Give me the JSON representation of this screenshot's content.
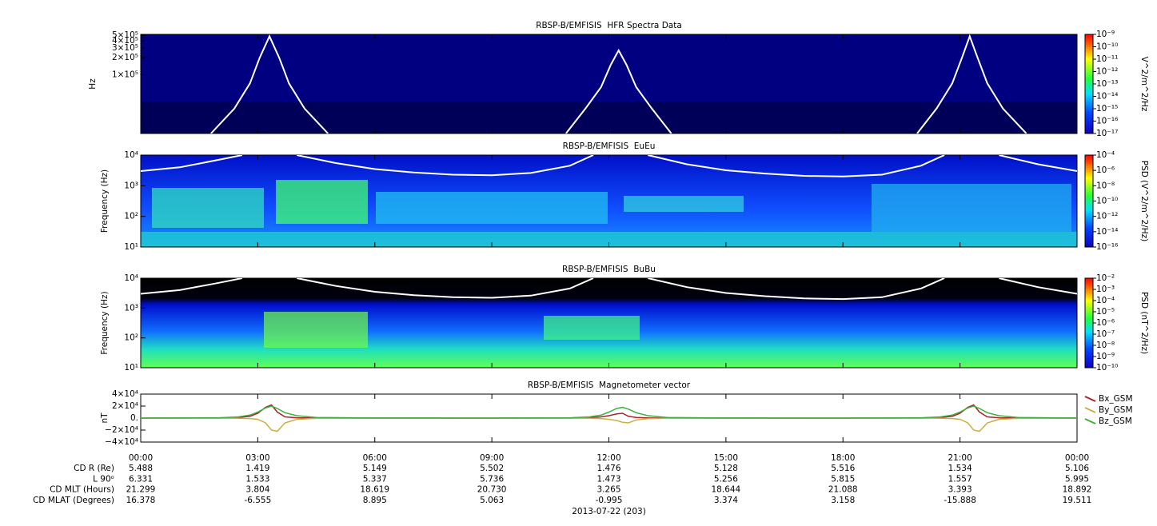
{
  "chart_data": [
    {
      "type": "spectrogram",
      "title": "RBSP-B/EMFISIS  HFR Spectra Data",
      "ylabel": "Hz",
      "log_y": true,
      "ylim": [
        9000,
        520000
      ],
      "yticks": [
        {
          "value": 100000,
          "label": "1×10⁵"
        },
        {
          "value": 200000,
          "label": "2×10⁵"
        },
        {
          "value": 300000,
          "label": "3×10⁵"
        },
        {
          "value": 400000,
          "label": "4×10⁵"
        },
        {
          "value": 500000,
          "label": "5×10⁵"
        }
      ],
      "colorbar": {
        "label": "V^2/m^2/Hz",
        "zlim": [
          1e-17,
          1e-09
        ],
        "ticks": [
          {
            "value": 1e-17,
            "label": "10⁻¹⁷"
          },
          {
            "value": 1e-16,
            "label": "10⁻¹⁶"
          },
          {
            "value": 1e-15,
            "label": "10⁻¹⁵"
          },
          {
            "value": 1e-14,
            "label": "10⁻¹⁴"
          },
          {
            "value": 1e-13,
            "label": "10⁻¹³"
          },
          {
            "value": 1e-12,
            "label": "10⁻¹²"
          },
          {
            "value": 1e-11,
            "label": "10⁻¹¹"
          },
          {
            "value": 1e-10,
            "label": "10⁻¹⁰"
          },
          {
            "value": 1e-09,
            "label": "10⁻⁹"
          }
        ]
      },
      "curve": {
        "color": "#ffffff",
        "x": [
          1.8,
          2.4,
          2.8,
          3.05,
          3.3,
          3.55,
          3.8,
          4.2,
          4.8,
          8,
          10.9,
          11.4,
          11.8,
          12.05,
          12.25,
          12.45,
          12.7,
          13.1,
          13.6,
          17,
          19.9,
          20.4,
          20.8,
          21.05,
          21.25,
          21.45,
          21.7,
          22.1,
          22.7
        ],
        "values": [
          9000,
          25000,
          70000,
          200000,
          480000,
          200000,
          70000,
          25000,
          9000,
          null,
          9000,
          25000,
          60000,
          150000,
          270000,
          150000,
          60000,
          25000,
          9000,
          null,
          9000,
          25000,
          70000,
          200000,
          480000,
          200000,
          70000,
          25000,
          9000
        ]
      }
    },
    {
      "type": "spectrogram",
      "title": "RBSP-B/EMFISIS  EuEu",
      "ylabel": "Frequency (Hz)",
      "log_y": true,
      "ylim": [
        10,
        10000
      ],
      "yticks": [
        {
          "value": 10,
          "label": "10¹"
        },
        {
          "value": 100,
          "label": "10²"
        },
        {
          "value": 1000,
          "label": "10³"
        },
        {
          "value": 10000,
          "label": "10⁴"
        }
      ],
      "colorbar": {
        "label": "PSD (V^2/m^2/Hz)",
        "zlim": [
          1e-16,
          0.0001
        ],
        "ticks": [
          {
            "value": 1e-16,
            "label": "10⁻¹⁶"
          },
          {
            "value": 1e-14,
            "label": "10⁻¹⁴"
          },
          {
            "value": 1e-12,
            "label": "10⁻¹²"
          },
          {
            "value": 1e-10,
            "label": "10⁻¹⁰"
          },
          {
            "value": 1e-08,
            "label": "10⁻⁸"
          },
          {
            "value": 1e-06,
            "label": "10⁻⁶"
          },
          {
            "value": 0.0001,
            "label": "10⁻⁴"
          }
        ]
      },
      "curve": {
        "color": "#ffffff",
        "x": [
          0,
          1,
          2,
          2.6,
          8,
          4.0,
          5,
          6,
          7,
          8,
          9,
          10,
          11,
          11.6,
          16,
          13.0,
          14,
          15,
          16,
          17,
          18,
          19,
          20,
          20.6,
          23,
          22.0,
          23,
          24
        ],
        "values": [
          3000,
          4000,
          7000,
          10000,
          null,
          10000,
          5500,
          3500,
          2700,
          2300,
          2200,
          2600,
          4500,
          10000,
          null,
          10000,
          5000,
          3200,
          2500,
          2100,
          2000,
          2300,
          4500,
          10000,
          null,
          10000,
          5000,
          3000
        ]
      }
    },
    {
      "type": "spectrogram",
      "title": "RBSP-B/EMFISIS  BuBu",
      "ylabel": "Frequency (Hz)",
      "log_y": true,
      "ylim": [
        10,
        10000
      ],
      "yticks": [
        {
          "value": 10,
          "label": "10¹"
        },
        {
          "value": 100,
          "label": "10²"
        },
        {
          "value": 1000,
          "label": "10³"
        },
        {
          "value": 10000,
          "label": "10⁴"
        }
      ],
      "colorbar": {
        "label": "PSD (nT^2/Hz)",
        "zlim": [
          1e-10,
          0.01
        ],
        "ticks": [
          {
            "value": 1e-10,
            "label": "10⁻¹⁰"
          },
          {
            "value": 1e-09,
            "label": "10⁻⁹"
          },
          {
            "value": 1e-08,
            "label": "10⁻⁸"
          },
          {
            "value": 1e-07,
            "label": "10⁻⁷"
          },
          {
            "value": 1e-06,
            "label": "10⁻⁶"
          },
          {
            "value": 1e-05,
            "label": "10⁻⁵"
          },
          {
            "value": 0.0001,
            "label": "10⁻⁴"
          },
          {
            "value": 0.001,
            "label": "10⁻³"
          },
          {
            "value": 0.01,
            "label": "10⁻²"
          }
        ]
      },
      "curve": {
        "color": "#ffffff",
        "x": [
          0,
          1,
          2,
          2.6,
          8,
          4.0,
          5,
          6,
          7,
          8,
          9,
          10,
          11,
          11.6,
          16,
          13.0,
          14,
          15,
          16,
          17,
          18,
          19,
          20,
          20.6,
          23,
          22.0,
          23,
          24
        ],
        "values": [
          3000,
          4000,
          7000,
          10000,
          null,
          10000,
          5500,
          3500,
          2700,
          2300,
          2200,
          2600,
          4500,
          10000,
          null,
          10000,
          5000,
          3200,
          2500,
          2100,
          2000,
          2300,
          4500,
          10000,
          null,
          10000,
          5000,
          3000
        ]
      }
    },
    {
      "type": "line",
      "title": "RBSP-B/EMFISIS  Magnetometer vector",
      "ylabel": "nT",
      "legend": "right",
      "xlim": [
        0,
        24
      ],
      "xticks": [
        {
          "value": 0,
          "label": "00:00"
        },
        {
          "value": 3,
          "label": "03:00"
        },
        {
          "value": 6,
          "label": "06:00"
        },
        {
          "value": 9,
          "label": "09:00"
        },
        {
          "value": 12,
          "label": "12:00"
        },
        {
          "value": 15,
          "label": "15:00"
        },
        {
          "value": 18,
          "label": "18:00"
        },
        {
          "value": 21,
          "label": "21:00"
        },
        {
          "value": 24,
          "label": "00:00"
        }
      ],
      "ylim": [
        -40000,
        40000
      ],
      "yticks": [
        {
          "value": -40000,
          "label": "−4×10⁴"
        },
        {
          "value": -20000,
          "label": "−2×10⁴"
        },
        {
          "value": 0,
          "label": "0."
        },
        {
          "value": 20000,
          "label": "2×10⁴"
        },
        {
          "value": 40000,
          "label": "4×10⁴"
        }
      ],
      "x": [
        0,
        2,
        2.5,
        2.8,
        3.0,
        3.2,
        3.35,
        3.5,
        3.7,
        4.0,
        4.5,
        6,
        9,
        11,
        11.5,
        11.8,
        12.0,
        12.2,
        12.35,
        12.5,
        12.7,
        13,
        13.5,
        15,
        18,
        20,
        20.5,
        20.8,
        21.0,
        21.2,
        21.35,
        21.5,
        21.7,
        22,
        22.5,
        24
      ],
      "series": [
        {
          "name": "Bx_GSM",
          "color": "#a8202a",
          "values": [
            0,
            200,
            1000,
            3000,
            8000,
            18000,
            22000,
            10000,
            2000,
            500,
            100,
            0,
            0,
            200,
            800,
            2000,
            4000,
            7000,
            8000,
            3000,
            1000,
            300,
            100,
            0,
            0,
            200,
            1000,
            3000,
            8000,
            18000,
            22000,
            10000,
            2000,
            500,
            100,
            0
          ]
        },
        {
          "name": "By_GSM",
          "color": "#c8b040",
          "values": [
            0,
            -100,
            -300,
            -800,
            -2000,
            -8000,
            -20000,
            -22000,
            -8000,
            -2000,
            -500,
            -100,
            0,
            -100,
            -300,
            -800,
            -2000,
            -4000,
            -7000,
            -8000,
            -3000,
            -1000,
            -300,
            -100,
            0,
            -100,
            -300,
            -800,
            -2000,
            -8000,
            -20000,
            -22000,
            -8000,
            -2000,
            -500,
            0
          ]
        },
        {
          "name": "Bz_GSM",
          "color": "#3cb03c",
          "values": [
            0,
            500,
            2000,
            5000,
            10000,
            17000,
            20000,
            16000,
            9000,
            4000,
            1000,
            200,
            0,
            500,
            2000,
            5000,
            10000,
            16000,
            18000,
            15000,
            9000,
            4000,
            1000,
            200,
            0,
            500,
            2000,
            5000,
            10000,
            17000,
            20000,
            16000,
            9000,
            4000,
            1000,
            0
          ]
        }
      ]
    }
  ],
  "ephemeris": {
    "rows": [
      {
        "label": "CD R (Re)",
        "values": [
          "5.488",
          "1.419",
          "5.149",
          "5.502",
          "1.476",
          "5.128",
          "5.516",
          "1.534",
          "5.106"
        ]
      },
      {
        "label": "L 90ᵒ",
        "values": [
          "6.331",
          "1.533",
          "5.337",
          "5.736",
          "1.473",
          "5.256",
          "5.815",
          "1.557",
          "5.995"
        ]
      },
      {
        "label": "CD MLT (Hours)",
        "values": [
          "21.299",
          "3.804",
          "18.619",
          "20.730",
          "3.265",
          "18.644",
          "21.088",
          "3.393",
          "18.892"
        ]
      },
      {
        "label": "CD MLAT (Degrees)",
        "values": [
          "16.378",
          "-6.555",
          "8.895",
          "5.063",
          "-0.995",
          "3.374",
          "3.158",
          "-15.888",
          "19.511"
        ]
      }
    ],
    "date": "2013-07-22 (203)"
  }
}
